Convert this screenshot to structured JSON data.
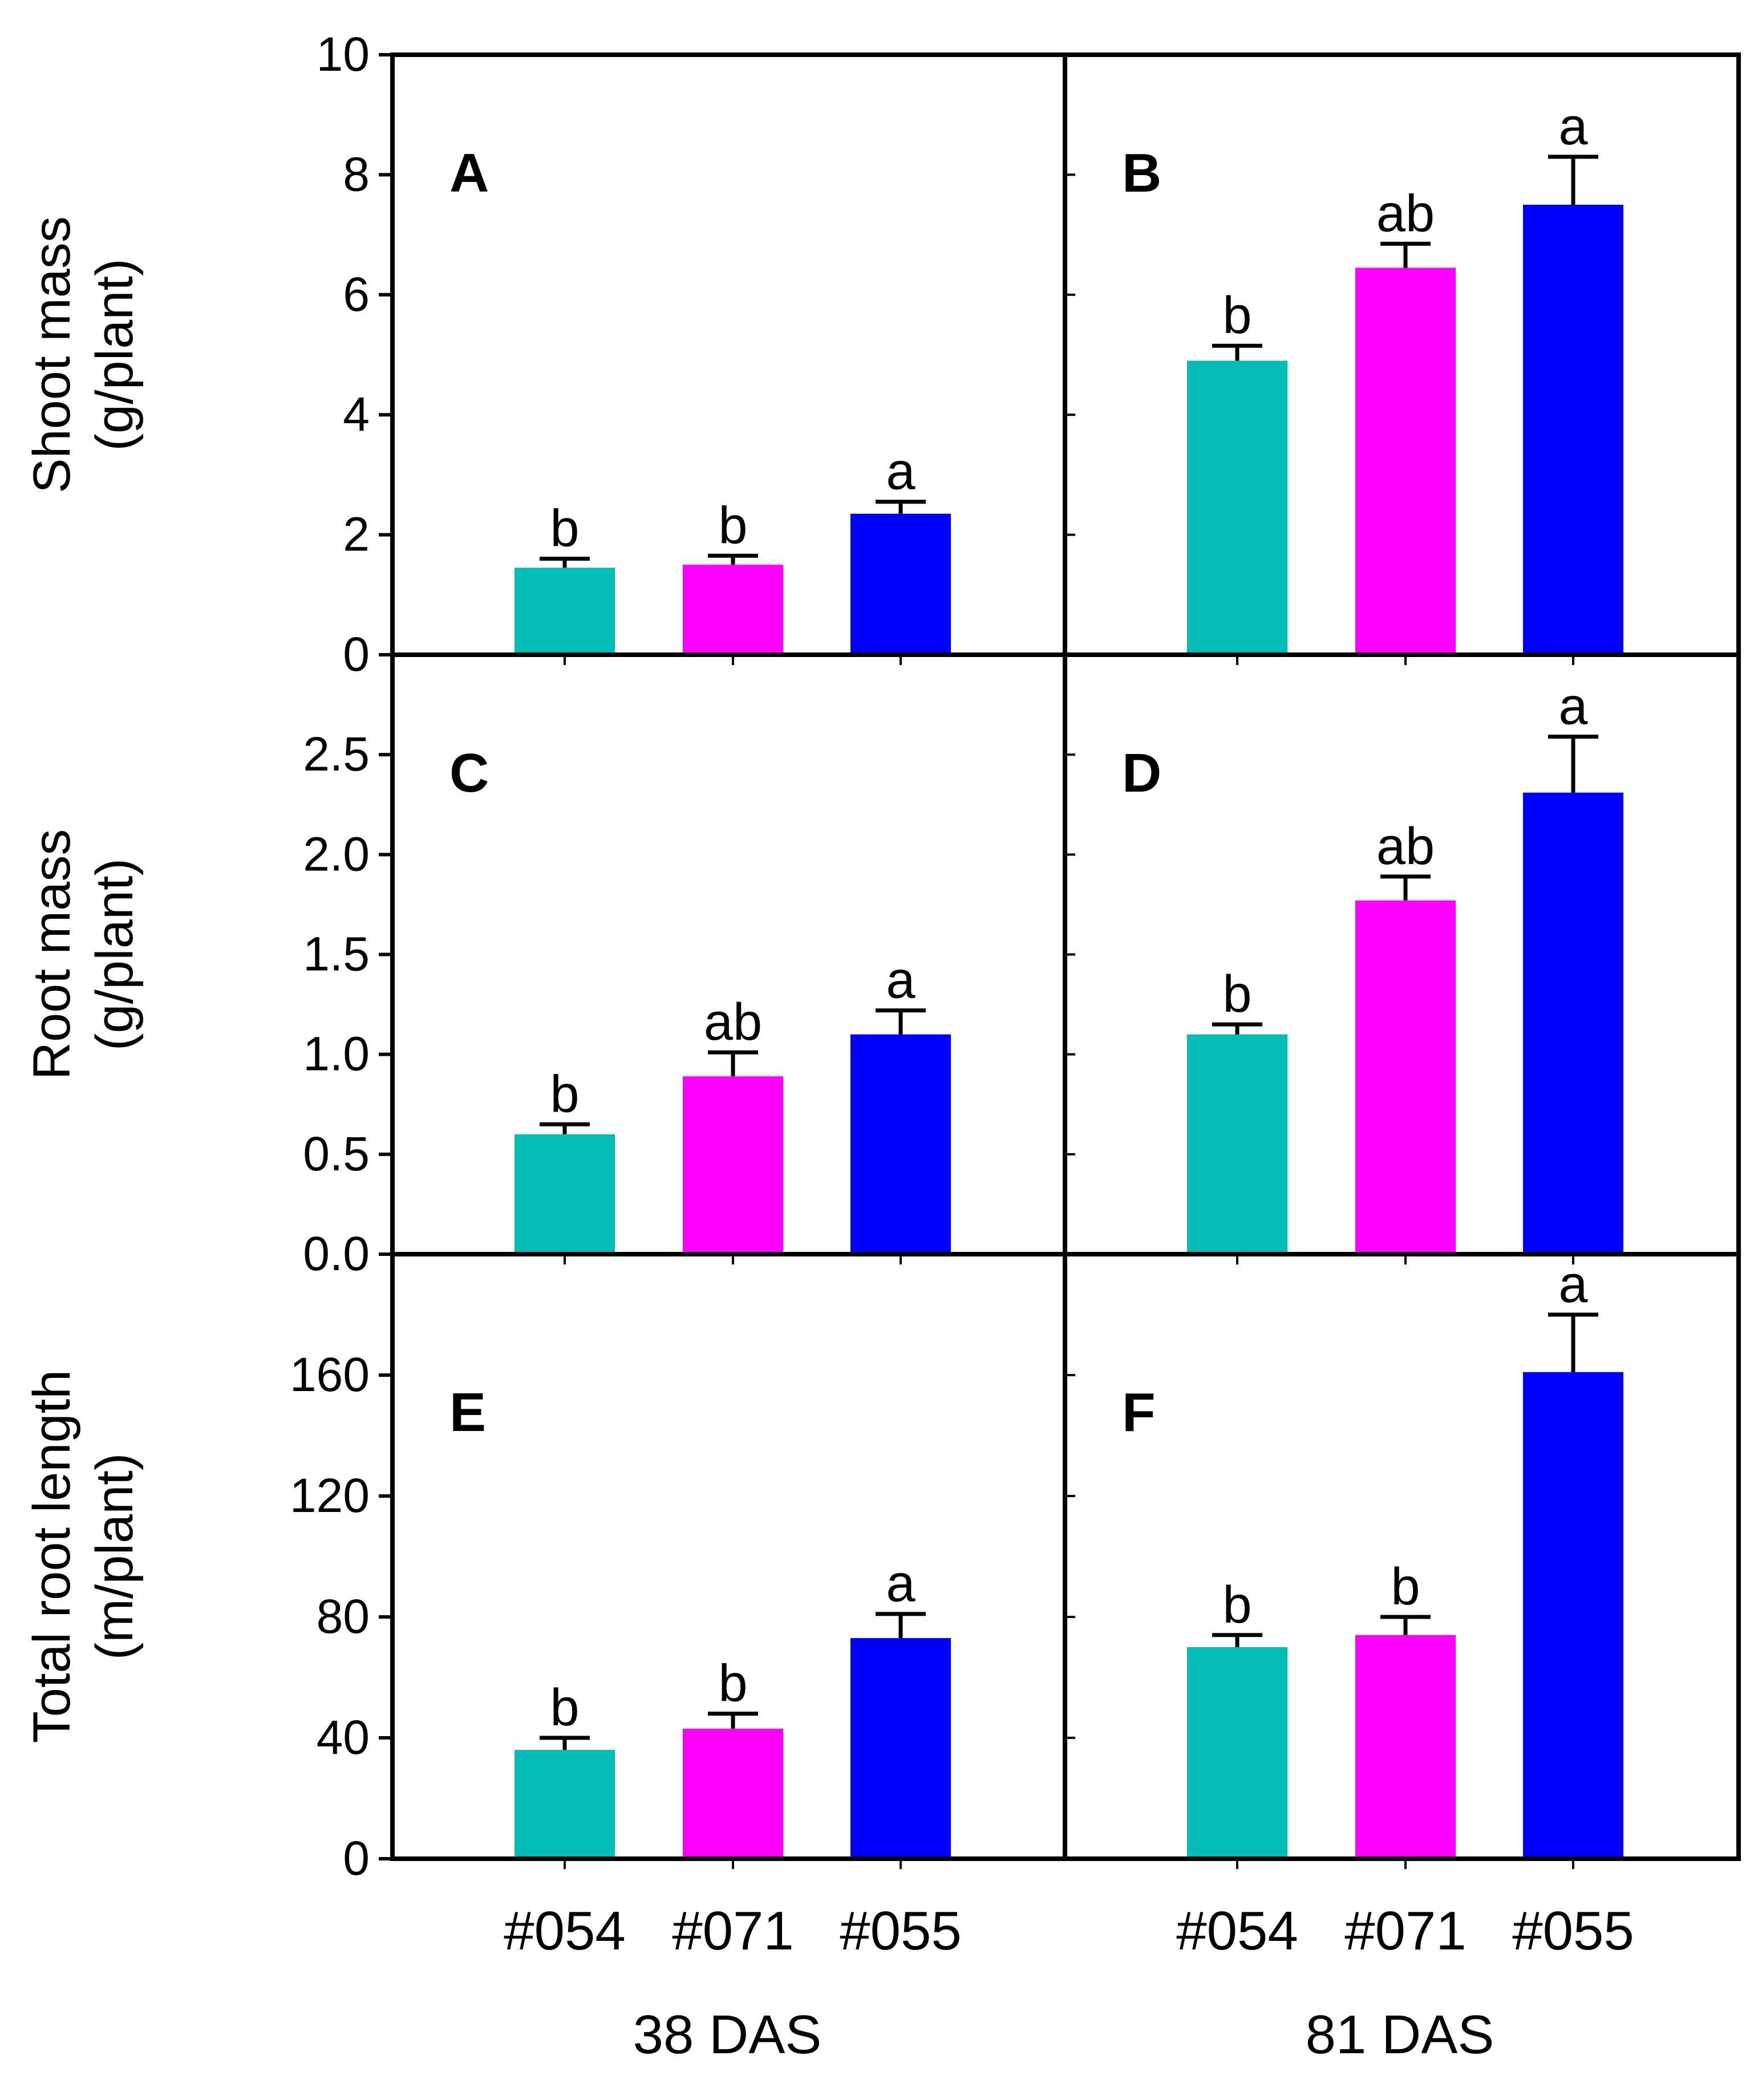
{
  "categories": [
    "#054",
    "#071",
    "#055"
  ],
  "colors": [
    "#00bdb5",
    "#ff00ff",
    "#0000ff"
  ],
  "groups": [
    "38 DAS",
    "81 DAS"
  ],
  "chart_data": [
    {
      "type": "bar",
      "panel": "A",
      "row": 0,
      "col": 0,
      "ylabel": [
        "Shoot mass",
        "(g/plant)"
      ],
      "ylim": [
        0,
        10
      ],
      "yticks": [
        0,
        2,
        4,
        6,
        8,
        10
      ],
      "tick_decimals": 0,
      "categories": [
        "#054",
        "#071",
        "#055"
      ],
      "values": [
        1.45,
        1.5,
        2.35
      ],
      "errors": [
        0.15,
        0.15,
        0.2
      ],
      "letters": [
        "b",
        "b",
        "a"
      ],
      "xgroup": "38 DAS"
    },
    {
      "type": "bar",
      "panel": "B",
      "row": 0,
      "col": 1,
      "ylabel": null,
      "ylim": [
        0,
        10
      ],
      "yticks": [
        0,
        2,
        4,
        6,
        8,
        10
      ],
      "tick_decimals": 0,
      "categories": [
        "#054",
        "#071",
        "#055"
      ],
      "values": [
        4.9,
        6.45,
        7.5
      ],
      "errors": [
        0.25,
        0.4,
        0.8
      ],
      "letters": [
        "b",
        "ab",
        "a"
      ],
      "xgroup": "81 DAS"
    },
    {
      "type": "bar",
      "panel": "C",
      "row": 1,
      "col": 0,
      "ylabel": [
        "Root mass",
        "(g/plant)"
      ],
      "ylim": [
        0,
        3.0
      ],
      "yticks": [
        0.0,
        0.5,
        1.0,
        1.5,
        2.0,
        2.5
      ],
      "tick_decimals": 1,
      "categories": [
        "#054",
        "#071",
        "#055"
      ],
      "values": [
        0.6,
        0.89,
        1.1
      ],
      "errors": [
        0.05,
        0.12,
        0.12
      ],
      "letters": [
        "b",
        "ab",
        "a"
      ],
      "xgroup": "38 DAS"
    },
    {
      "type": "bar",
      "panel": "D",
      "row": 1,
      "col": 1,
      "ylabel": null,
      "ylim": [
        0,
        3.0
      ],
      "yticks": [
        0.0,
        0.5,
        1.0,
        1.5,
        2.0,
        2.5
      ],
      "tick_decimals": 1,
      "categories": [
        "#054",
        "#071",
        "#055"
      ],
      "values": [
        1.1,
        1.77,
        2.31
      ],
      "errors": [
        0.05,
        0.12,
        0.28
      ],
      "letters": [
        "b",
        "ab",
        "a"
      ],
      "xgroup": "81 DAS"
    },
    {
      "type": "bar",
      "panel": "E",
      "row": 2,
      "col": 0,
      "ylabel": [
        "Total root length",
        "(m/plant)"
      ],
      "ylim": [
        0,
        200
      ],
      "yticks": [
        0,
        40,
        80,
        120,
        160
      ],
      "tick_decimals": 0,
      "categories": [
        "#054",
        "#071",
        "#055"
      ],
      "values": [
        36,
        43,
        73
      ],
      "errors": [
        4,
        5,
        8
      ],
      "letters": [
        "b",
        "b",
        "a"
      ],
      "xgroup": "38 DAS"
    },
    {
      "type": "bar",
      "panel": "F",
      "row": 2,
      "col": 1,
      "ylabel": null,
      "ylim": [
        0,
        200
      ],
      "yticks": [
        0,
        40,
        80,
        120,
        160
      ],
      "tick_decimals": 0,
      "categories": [
        "#054",
        "#071",
        "#055"
      ],
      "values": [
        70,
        74,
        161
      ],
      "errors": [
        4,
        6,
        19
      ],
      "letters": [
        "b",
        "b",
        "a"
      ],
      "xgroup": "81 DAS"
    }
  ]
}
